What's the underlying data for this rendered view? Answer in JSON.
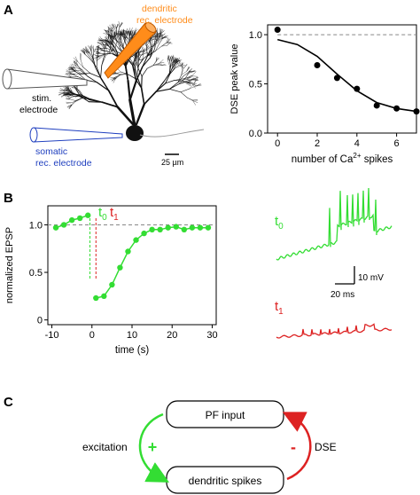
{
  "panels": {
    "a": "A",
    "b": "B",
    "c": "C"
  },
  "panel_a": {
    "labels": {
      "dendritic_line1": "dendritic",
      "dendritic_line2": "rec. electrode",
      "stim_line1": "stim.",
      "stim_line2": "electrode",
      "somatic_line1": "somatic",
      "somatic_line2": "rec. electrode",
      "scalebar": "25 µm"
    },
    "colors": {
      "dendritic": "#ff8c1a",
      "somatic": "#1f3fbf",
      "stim": "#555555"
    }
  },
  "panel_b": {
    "trace_labels": {
      "t0": "t",
      "t0_sub": "0",
      "t1": "t",
      "t1_sub": "1"
    },
    "scalebars": {
      "voltage": "10 mV",
      "time": "20 ms"
    },
    "colors": {
      "t0": "#33dd33",
      "t1": "#dd2222"
    }
  },
  "panel_c": {
    "box_top": "PF input",
    "box_bottom": "dendritic spikes",
    "left_label": "excitation",
    "left_sign": "+",
    "right_label": "DSE",
    "right_sign": "-",
    "colors": {
      "excitation": "#33dd33",
      "dse": "#dd2222"
    }
  },
  "chart_data": [
    {
      "type": "scatter",
      "ylabel": "DSE peak value",
      "xlabel": "number of Ca2+ spikes",
      "xlabel_parts": [
        "number of Ca",
        "2+",
        " spikes"
      ],
      "xlim": [
        -0.5,
        7
      ],
      "ylim": [
        0,
        1.1
      ],
      "xticks": [
        "0",
        "2",
        "4",
        "6"
      ],
      "yticks": [
        "0.0",
        "0.5",
        "1.0"
      ],
      "reference_line": 1.0,
      "x": [
        0,
        2,
        3,
        4,
        5,
        6,
        7
      ],
      "y": [
        1.05,
        0.69,
        0.56,
        0.45,
        0.28,
        0.25,
        0.22
      ],
      "fit": [
        [
          0,
          0.95
        ],
        [
          1,
          0.9
        ],
        [
          2,
          0.78
        ],
        [
          3,
          0.6
        ],
        [
          4,
          0.43
        ],
        [
          5,
          0.31
        ],
        [
          6,
          0.25
        ],
        [
          7,
          0.22
        ]
      ]
    },
    {
      "type": "line",
      "ylabel": "normalized EPSP",
      "xlabel": "time (s)",
      "xlim": [
        -11,
        31
      ],
      "ylim": [
        -0.05,
        1.2
      ],
      "xticks": [
        "-10",
        "0",
        "10",
        "20",
        "30"
      ],
      "yticks": [
        "0",
        "0.5",
        "1.0"
      ],
      "reference_line": 1.0,
      "marker_t0": -0.5,
      "marker_t1": 1.0,
      "x": [
        -9,
        -7,
        -5,
        -3,
        -1,
        1,
        3,
        5,
        7,
        9,
        11,
        13,
        15,
        17,
        19,
        21,
        23,
        25,
        27,
        29
      ],
      "y": [
        0.97,
        1.0,
        1.05,
        1.07,
        1.1,
        0.23,
        0.25,
        0.37,
        0.55,
        0.72,
        0.84,
        0.91,
        0.95,
        0.95,
        0.97,
        0.98,
        0.95,
        0.97,
        0.97,
        0.97
      ]
    }
  ]
}
